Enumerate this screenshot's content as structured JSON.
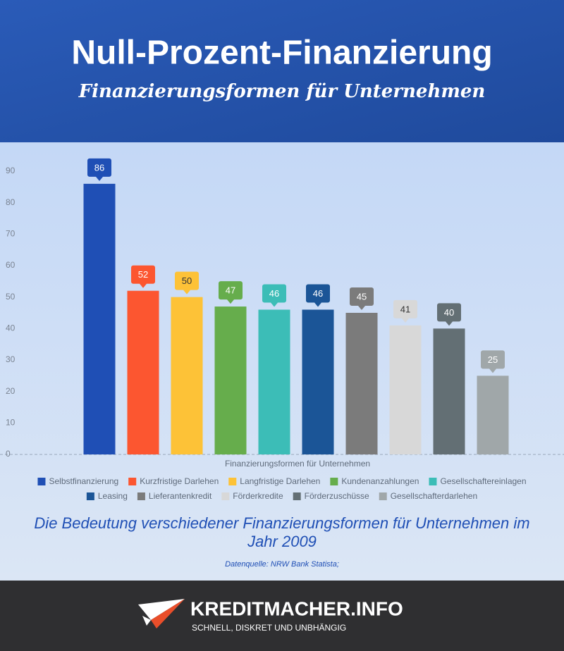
{
  "header": {
    "title": "Null-Prozent-Finanzierung",
    "subtitle": "Finanzierungsformen für Unternehmen"
  },
  "chart_data": {
    "type": "bar",
    "categories": [
      "Finanzierungsformen für Unternehmen"
    ],
    "series": [
      {
        "name": "Selbstfinanzierung",
        "color": "#1f4fb5",
        "values": [
          86
        ]
      },
      {
        "name": "Kurzfristige Darlehen",
        "color": "#fc5630",
        "values": [
          52
        ]
      },
      {
        "name": "Langfristige Darlehen",
        "color": "#fdc237",
        "values": [
          50
        ]
      },
      {
        "name": "Kundenanzahlungen",
        "color": "#66ad4c",
        "values": [
          47
        ]
      },
      {
        "name": "Gesellschaftereinlagen",
        "color": "#3cbdb7",
        "values": [
          46
        ]
      },
      {
        "name": "Leasing",
        "color": "#1b5597",
        "values": [
          46
        ]
      },
      {
        "name": "Lieferantenkredit",
        "color": "#7b7b7b",
        "values": [
          45
        ]
      },
      {
        "name": "Förderkredite",
        "color": "#d8d8d8",
        "values": [
          41
        ]
      },
      {
        "name": "Förderzuschüsse",
        "color": "#636f74",
        "values": [
          40
        ]
      },
      {
        "name": "Gesellschafterdarlehen",
        "color": "#a0a7a9",
        "values": [
          25
        ]
      }
    ],
    "ylim": [
      0,
      90
    ],
    "yticks": [
      0,
      10,
      20,
      30,
      40,
      50,
      60,
      70,
      80,
      90
    ],
    "grid": false
  },
  "caption": "Die Bedeutung verschiedener Finanzierungsformen für Unternehmen im Jahr 2009",
  "source": "Datenquelle: NRW Bank Statista;",
  "footer": {
    "brand": "KREDITMACHER.INFO",
    "tagline": "SCHNELL, DISKRET UND UNBHÄNGIG"
  }
}
